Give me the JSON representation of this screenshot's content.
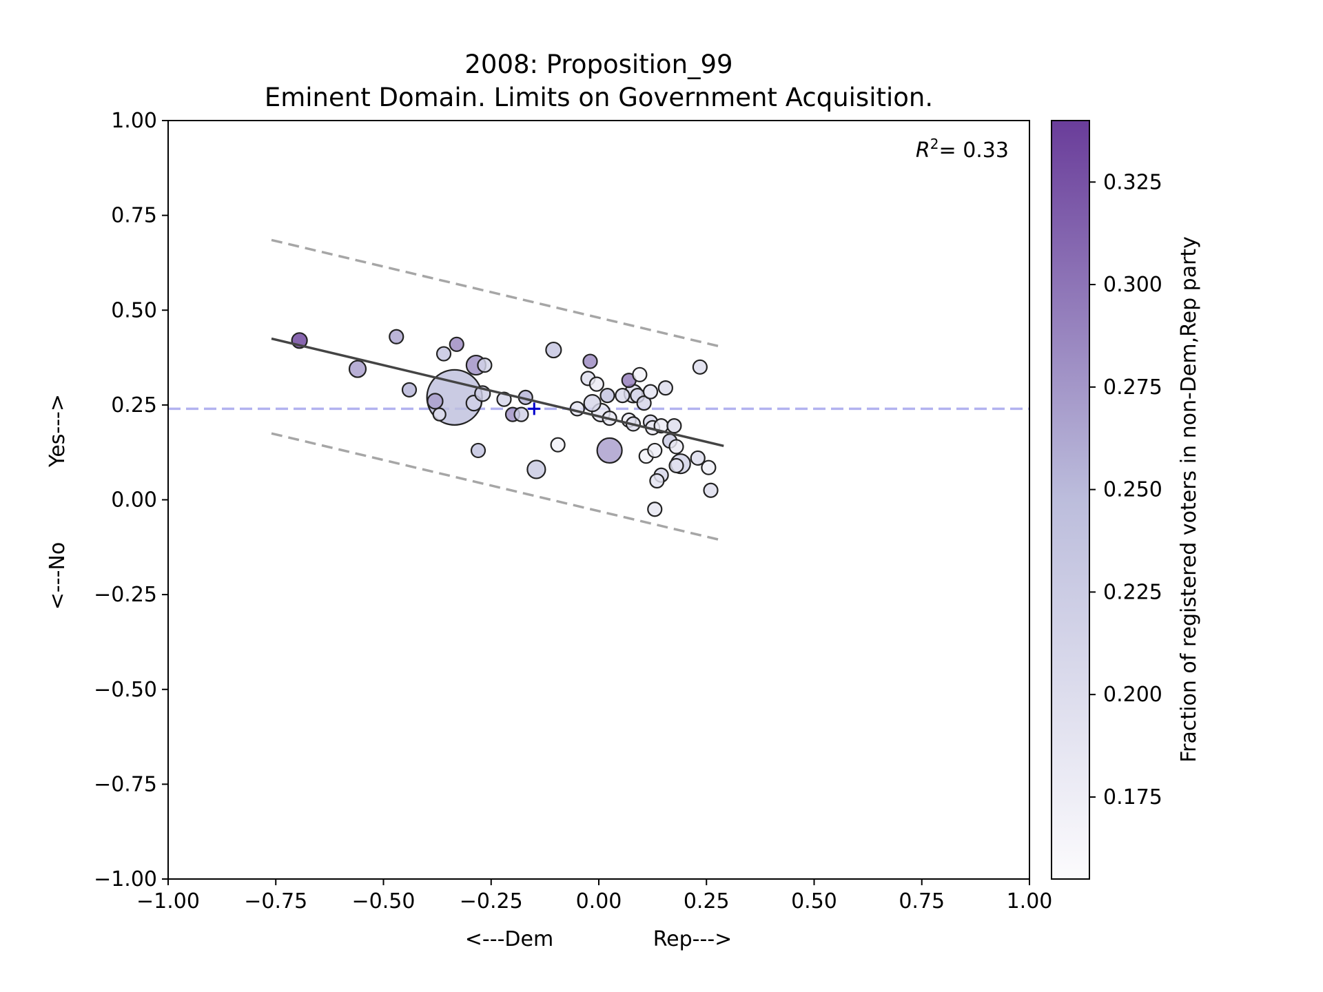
{
  "chart_data": {
    "type": "scatter",
    "title": "2008: Proposition_99",
    "subtitle": "Eminent Domain. Limits on Government Acquisition.",
    "xlabel_left": "<---Dem",
    "xlabel_right": "Rep--->",
    "ylabel_bottom": "<---No",
    "ylabel_top": "Yes--->",
    "xlim": [
      -1.0,
      1.0
    ],
    "ylim": [
      -1.0,
      1.0
    ],
    "x_ticks": [
      "−1.00",
      "−0.75",
      "−0.50",
      "−0.25",
      "0.00",
      "0.25",
      "0.50",
      "0.75",
      "1.00"
    ],
    "x_tick_values": [
      -1.0,
      -0.75,
      -0.5,
      -0.25,
      0.0,
      0.25,
      0.5,
      0.75,
      1.0
    ],
    "y_ticks": [
      "−1.00",
      "−0.75",
      "−0.50",
      "−0.25",
      "0.00",
      "0.25",
      "0.50",
      "0.75",
      "1.00"
    ],
    "y_tick_values": [
      -1.0,
      -0.75,
      -0.5,
      -0.25,
      0.0,
      0.25,
      0.5,
      0.75,
      1.0
    ],
    "r2_label": "= 0.33",
    "r2_prefix": "R",
    "r2_sup": "2",
    "grid": false,
    "mean_line_y": 0.24,
    "mean_marker": {
      "x": -0.15,
      "y": 0.24
    },
    "fit_line": {
      "x": [
        -0.76,
        0.29
      ],
      "y": [
        0.425,
        0.142
      ]
    },
    "band_upper": {
      "x": [
        -0.76,
        0.29
      ],
      "y": [
        0.685,
        0.402
      ]
    },
    "band_lower": {
      "x": [
        -0.76,
        0.29
      ],
      "y": [
        0.175,
        -0.108
      ]
    },
    "colorbar": {
      "label": "Fraction of registered voters in non-Dem,Rep party",
      "range": [
        0.155,
        0.34
      ],
      "ticks": [
        "0.175",
        "0.200",
        "0.225",
        "0.250",
        "0.275",
        "0.300",
        "0.325"
      ],
      "tick_values": [
        0.175,
        0.2,
        0.225,
        0.25,
        0.275,
        0.3,
        0.325
      ],
      "color_low": "#fcfbfd",
      "color_high": "#6a3d9a"
    },
    "colors": {
      "mean_line": "#b2b2f0",
      "mean_marker": "#0000cc",
      "fit_line": "#444444",
      "band": "#a6a6a6",
      "point_edge": "#222222"
    },
    "points": [
      {
        "x": -0.695,
        "y": 0.42,
        "s": 11,
        "c": 0.335
      },
      {
        "x": -0.56,
        "y": 0.345,
        "s": 12,
        "c": 0.27
      },
      {
        "x": -0.47,
        "y": 0.43,
        "s": 10,
        "c": 0.265
      },
      {
        "x": -0.44,
        "y": 0.29,
        "s": 10,
        "c": 0.255
      },
      {
        "x": -0.36,
        "y": 0.385,
        "s": 10,
        "c": 0.235
      },
      {
        "x": -0.33,
        "y": 0.41,
        "s": 10,
        "c": 0.285
      },
      {
        "x": -0.335,
        "y": 0.27,
        "s": 40,
        "c": 0.245
      },
      {
        "x": -0.38,
        "y": 0.26,
        "s": 11,
        "c": 0.27
      },
      {
        "x": -0.37,
        "y": 0.225,
        "s": 9,
        "c": 0.2
      },
      {
        "x": -0.285,
        "y": 0.355,
        "s": 14,
        "c": 0.28
      },
      {
        "x": -0.265,
        "y": 0.355,
        "s": 10,
        "c": 0.215
      },
      {
        "x": -0.29,
        "y": 0.255,
        "s": 11,
        "c": 0.22
      },
      {
        "x": -0.27,
        "y": 0.28,
        "s": 11,
        "c": 0.225
      },
      {
        "x": -0.22,
        "y": 0.265,
        "s": 10,
        "c": 0.21
      },
      {
        "x": -0.2,
        "y": 0.225,
        "s": 10,
        "c": 0.28
      },
      {
        "x": -0.18,
        "y": 0.225,
        "s": 10,
        "c": 0.22
      },
      {
        "x": -0.17,
        "y": 0.27,
        "s": 10,
        "c": 0.255
      },
      {
        "x": -0.28,
        "y": 0.13,
        "s": 10,
        "c": 0.24
      },
      {
        "x": -0.145,
        "y": 0.08,
        "s": 13,
        "c": 0.23
      },
      {
        "x": -0.095,
        "y": 0.145,
        "s": 10,
        "c": 0.17
      },
      {
        "x": -0.105,
        "y": 0.395,
        "s": 11,
        "c": 0.235
      },
      {
        "x": -0.05,
        "y": 0.24,
        "s": 10,
        "c": 0.19
      },
      {
        "x": -0.02,
        "y": 0.365,
        "s": 10,
        "c": 0.285
      },
      {
        "x": -0.025,
        "y": 0.32,
        "s": 10,
        "c": 0.2
      },
      {
        "x": -0.005,
        "y": 0.305,
        "s": 10,
        "c": 0.18
      },
      {
        "x": -0.015,
        "y": 0.255,
        "s": 12,
        "c": 0.21
      },
      {
        "x": 0.005,
        "y": 0.23,
        "s": 13,
        "c": 0.19
      },
      {
        "x": 0.02,
        "y": 0.275,
        "s": 10,
        "c": 0.24
      },
      {
        "x": 0.025,
        "y": 0.215,
        "s": 10,
        "c": 0.185
      },
      {
        "x": 0.025,
        "y": 0.13,
        "s": 18,
        "c": 0.27
      },
      {
        "x": 0.055,
        "y": 0.275,
        "s": 10,
        "c": 0.205
      },
      {
        "x": 0.07,
        "y": 0.315,
        "s": 10,
        "c": 0.295
      },
      {
        "x": 0.07,
        "y": 0.21,
        "s": 10,
        "c": 0.18
      },
      {
        "x": 0.08,
        "y": 0.2,
        "s": 10,
        "c": 0.2
      },
      {
        "x": 0.08,
        "y": 0.28,
        "s": 13,
        "c": 0.2
      },
      {
        "x": 0.09,
        "y": 0.275,
        "s": 10,
        "c": 0.21
      },
      {
        "x": 0.095,
        "y": 0.33,
        "s": 10,
        "c": 0.17
      },
      {
        "x": 0.105,
        "y": 0.255,
        "s": 10,
        "c": 0.21
      },
      {
        "x": 0.12,
        "y": 0.285,
        "s": 10,
        "c": 0.19
      },
      {
        "x": 0.12,
        "y": 0.205,
        "s": 10,
        "c": 0.205
      },
      {
        "x": 0.125,
        "y": 0.19,
        "s": 10,
        "c": 0.18
      },
      {
        "x": 0.11,
        "y": 0.115,
        "s": 10,
        "c": 0.17
      },
      {
        "x": 0.13,
        "y": 0.13,
        "s": 10,
        "c": 0.175
      },
      {
        "x": 0.145,
        "y": 0.195,
        "s": 10,
        "c": 0.18
      },
      {
        "x": 0.155,
        "y": 0.295,
        "s": 10,
        "c": 0.2
      },
      {
        "x": 0.165,
        "y": 0.155,
        "s": 10,
        "c": 0.23
      },
      {
        "x": 0.175,
        "y": 0.195,
        "s": 10,
        "c": 0.2
      },
      {
        "x": 0.18,
        "y": 0.14,
        "s": 10,
        "c": 0.18
      },
      {
        "x": 0.19,
        "y": 0.095,
        "s": 14,
        "c": 0.215
      },
      {
        "x": 0.18,
        "y": 0.09,
        "s": 10,
        "c": 0.195
      },
      {
        "x": 0.145,
        "y": 0.065,
        "s": 10,
        "c": 0.21
      },
      {
        "x": 0.135,
        "y": 0.05,
        "s": 10,
        "c": 0.19
      },
      {
        "x": 0.23,
        "y": 0.11,
        "s": 10,
        "c": 0.2
      },
      {
        "x": 0.235,
        "y": 0.35,
        "s": 10,
        "c": 0.2
      },
      {
        "x": 0.255,
        "y": 0.085,
        "s": 10,
        "c": 0.175
      },
      {
        "x": 0.26,
        "y": 0.025,
        "s": 10,
        "c": 0.2
      },
      {
        "x": 0.13,
        "y": -0.025,
        "s": 10,
        "c": 0.185
      }
    ]
  }
}
